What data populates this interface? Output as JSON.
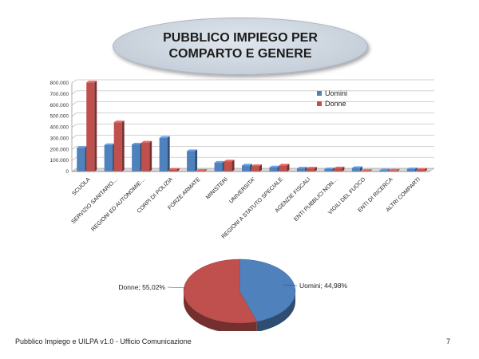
{
  "title": "PUBBLICO IMPIEGO PER COMPARTO E GENERE",
  "footer": "Pubblico Impiego e UILPA v1.0 - Ufficio Comunicazione",
  "page_number": "7",
  "colors": {
    "uomini": "#4f81bd",
    "donne": "#c0504d"
  },
  "chart_data": [
    {
      "type": "bar",
      "categories": [
        "SCUOLA",
        "SERVIZIO SANITARIO…",
        "REGIONI ED AUTONOMIE…",
        "CORPI DI POLIZIA",
        "FORZE ARMATE",
        "MINISTERI",
        "UNIVERSITA'",
        "REGIONI A STATUTO SPECIALE",
        "AGENZIE FISCALI",
        "ENTI PUBBLICI NON…",
        "VIGILI DEL FUOCO",
        "ENTI DI RICERCA",
        "ALTRI COMPARTI"
      ],
      "series": [
        {
          "name": "Uomini",
          "values": [
            215000,
            240000,
            245000,
            305000,
            185000,
            80000,
            55000,
            38000,
            28000,
            22000,
            32000,
            11000,
            22000
          ]
        },
        {
          "name": "Donne",
          "values": [
            805000,
            445000,
            262000,
            18000,
            7000,
            92000,
            50000,
            55000,
            28000,
            30000,
            6000,
            9000,
            18000
          ]
        }
      ],
      "ylim": [
        0,
        800000
      ],
      "yticks": [
        "0",
        "100000",
        "200000",
        "300000",
        "400000",
        "500000",
        "600000",
        "700000",
        "800000"
      ],
      "legend": "top-right",
      "grid": true
    },
    {
      "type": "pie",
      "labels": [
        "Uomini",
        "Donne"
      ],
      "values": [
        44.98,
        55.02
      ],
      "data_labels": [
        "Uomini; 44,98%",
        "Donne; 55,02%"
      ]
    }
  ]
}
